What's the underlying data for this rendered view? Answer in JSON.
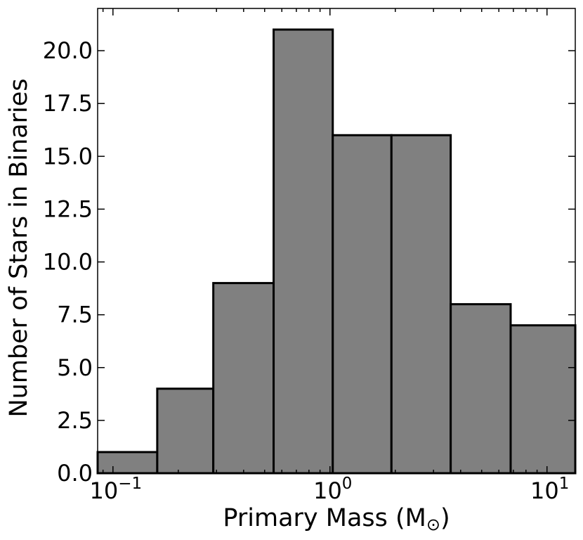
{
  "chart_data": {
    "type": "bar",
    "title": "",
    "xlabel": "Primary Mass (M",
    "xlabel_subscript": "⊙",
    "xlabel_suffix": ")",
    "ylabel": "Number of Stars in Binaries",
    "x_scale": "log",
    "xlim": [
      0.085,
      13.5
    ],
    "ylim": [
      0,
      22
    ],
    "bin_edges": [
      0.085,
      0.16,
      0.29,
      0.55,
      1.03,
      1.92,
      3.6,
      6.8,
      13.5
    ],
    "values": [
      1,
      4,
      9,
      21,
      16,
      16,
      8,
      7
    ],
    "y_ticks": [
      {
        "value": 0,
        "label": "0.0"
      },
      {
        "value": 2.5,
        "label": "2.5"
      },
      {
        "value": 5,
        "label": "5.0"
      },
      {
        "value": 7.5,
        "label": "7.5"
      },
      {
        "value": 10,
        "label": "10.0"
      },
      {
        "value": 12.5,
        "label": "12.5"
      },
      {
        "value": 15,
        "label": "15.0"
      },
      {
        "value": 17.5,
        "label": "17.5"
      },
      {
        "value": 20,
        "label": "20.0"
      }
    ],
    "x_major_ticks": [
      {
        "value": 0.1,
        "base": "10",
        "exp": "−1"
      },
      {
        "value": 1,
        "base": "10",
        "exp": "0"
      },
      {
        "value": 10,
        "base": "10",
        "exp": "1"
      }
    ],
    "bar_color": "#808080",
    "edge_color": "#000000",
    "grid": false,
    "legend": "none"
  }
}
